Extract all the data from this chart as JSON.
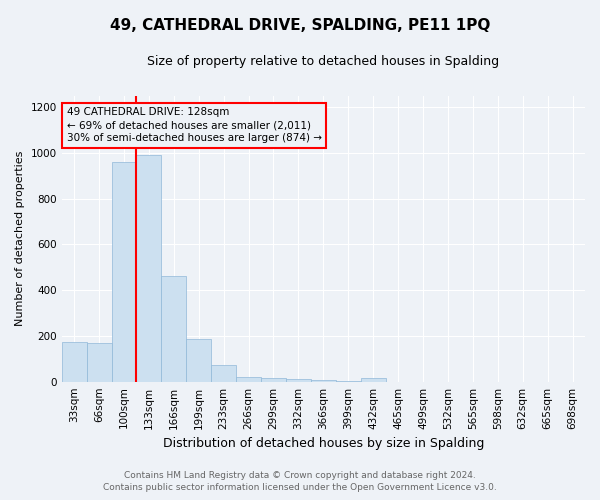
{
  "title": "49, CATHEDRAL DRIVE, SPALDING, PE11 1PQ",
  "subtitle": "Size of property relative to detached houses in Spalding",
  "xlabel": "Distribution of detached houses by size in Spalding",
  "ylabel": "Number of detached properties",
  "bins": [
    "33sqm",
    "66sqm",
    "100sqm",
    "133sqm",
    "166sqm",
    "199sqm",
    "233sqm",
    "266sqm",
    "299sqm",
    "332sqm",
    "366sqm",
    "399sqm",
    "432sqm",
    "465sqm",
    "499sqm",
    "532sqm",
    "565sqm",
    "598sqm",
    "632sqm",
    "665sqm",
    "698sqm"
  ],
  "values": [
    175,
    170,
    960,
    990,
    460,
    185,
    75,
    20,
    15,
    10,
    8,
    5,
    15,
    0,
    0,
    0,
    0,
    0,
    0,
    0,
    0
  ],
  "bar_color": "#cce0f0",
  "bar_edge_color": "#90b8d8",
  "red_line_x": 2.5,
  "annotation_text": "49 CATHEDRAL DRIVE: 128sqm\n← 69% of detached houses are smaller (2,011)\n30% of semi-detached houses are larger (874) →",
  "ylim": [
    0,
    1250
  ],
  "yticks": [
    0,
    200,
    400,
    600,
    800,
    1000,
    1200
  ],
  "footer_line1": "Contains HM Land Registry data © Crown copyright and database right 2024.",
  "footer_line2": "Contains public sector information licensed under the Open Government Licence v3.0.",
  "bg_color": "#eef2f7",
  "grid_color": "#ffffff",
  "title_fontsize": 11,
  "subtitle_fontsize": 9,
  "xlabel_fontsize": 9,
  "ylabel_fontsize": 8,
  "tick_fontsize": 7.5,
  "ann_fontsize": 7.5,
  "footer_fontsize": 6.5
}
